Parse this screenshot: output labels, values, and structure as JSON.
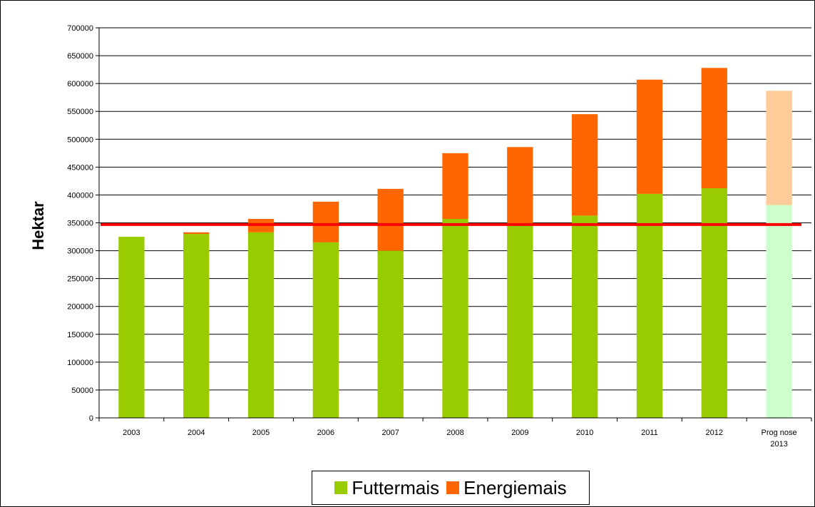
{
  "chart_data": {
    "type": "bar",
    "stacked": true,
    "categories": [
      "2003",
      "2004",
      "2005",
      "2006",
      "2007",
      "2008",
      "2009",
      "2010",
      "2011",
      "2012",
      "Prognose 2013"
    ],
    "category_lines": [
      [
        "2003"
      ],
      [
        "2004"
      ],
      [
        "2005"
      ],
      [
        "2006"
      ],
      [
        "2007"
      ],
      [
        "2008"
      ],
      [
        "2009"
      ],
      [
        "2010"
      ],
      [
        "2011"
      ],
      [
        "2012"
      ],
      [
        "Prog nose",
        "2013"
      ]
    ],
    "series": [
      {
        "name": "Futtermais",
        "color": "#99CC00",
        "forecast_color": "#CCFFCC",
        "values": [
          325000,
          330000,
          333000,
          315000,
          300000,
          357000,
          345000,
          363000,
          402000,
          412000,
          382000
        ]
      },
      {
        "name": "Energiemais",
        "color": "#FF6600",
        "forecast_color": "#FFCC99",
        "values": [
          0,
          3000,
          24000,
          73000,
          111000,
          118000,
          141000,
          182000,
          205000,
          216000,
          205000
        ]
      }
    ],
    "forecast_category": "Prognose 2013",
    "reference_line": {
      "value": 347000,
      "color": "#FF0000"
    },
    "ylabel": "Hektar",
    "xlabel": "",
    "title": "",
    "ylim": [
      0,
      700000
    ],
    "ytick_step": 50000,
    "grid": true,
    "legend_position": "bottom"
  },
  "legend": {
    "items": [
      {
        "label": "Futtermais",
        "color": "#99CC00"
      },
      {
        "label": "Energiemais",
        "color": "#FF6600"
      }
    ]
  }
}
